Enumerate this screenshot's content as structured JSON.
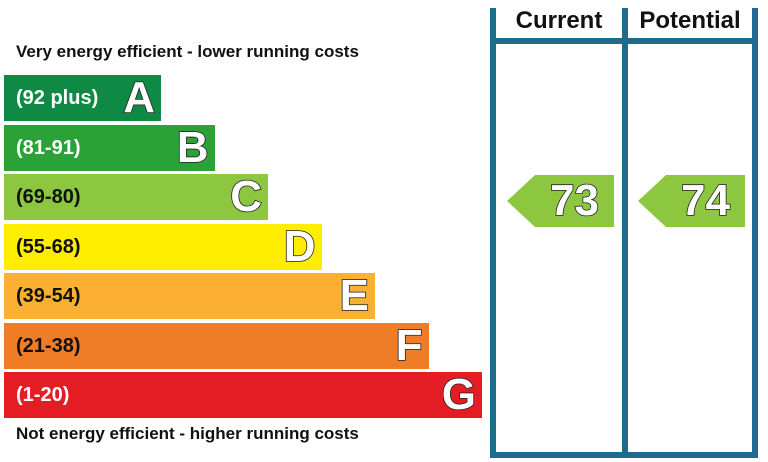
{
  "captions": {
    "top": "Very energy efficient - lower running costs",
    "bottom": "Not energy efficient - higher running costs"
  },
  "columns": {
    "current": "Current",
    "potential": "Potential"
  },
  "chart_data": {
    "type": "bar",
    "categories": [
      "A",
      "B",
      "C",
      "D",
      "E",
      "F",
      "G"
    ],
    "bands": [
      {
        "letter": "A",
        "range": "(92 plus)",
        "min": 92,
        "max": null,
        "color": "#0f8a45",
        "text_color": "#ffffff"
      },
      {
        "letter": "B",
        "range": "(81-91)",
        "min": 81,
        "max": 91,
        "color": "#2ba238",
        "text_color": "#ffffff"
      },
      {
        "letter": "C",
        "range": "(69-80)",
        "min": 69,
        "max": 80,
        "color": "#8dc63f",
        "text_color": "#111111"
      },
      {
        "letter": "D",
        "range": "(55-68)",
        "min": 55,
        "max": 68,
        "color": "#ffed00",
        "text_color": "#111111"
      },
      {
        "letter": "E",
        "range": "(39-54)",
        "min": 39,
        "max": 54,
        "color": "#fbb034",
        "text_color": "#111111"
      },
      {
        "letter": "F",
        "range": "(21-38)",
        "min": 21,
        "max": 38,
        "color": "#ef7d28",
        "text_color": "#111111"
      },
      {
        "letter": "G",
        "range": "(1-20)",
        "min": 1,
        "max": 20,
        "color": "#e31d23",
        "text_color": "#ffffff"
      }
    ],
    "series": [
      {
        "name": "Current",
        "value": 73,
        "band": "C",
        "color": "#8dc63f"
      },
      {
        "name": "Potential",
        "value": 74,
        "band": "C",
        "color": "#8dc63f"
      }
    ]
  }
}
